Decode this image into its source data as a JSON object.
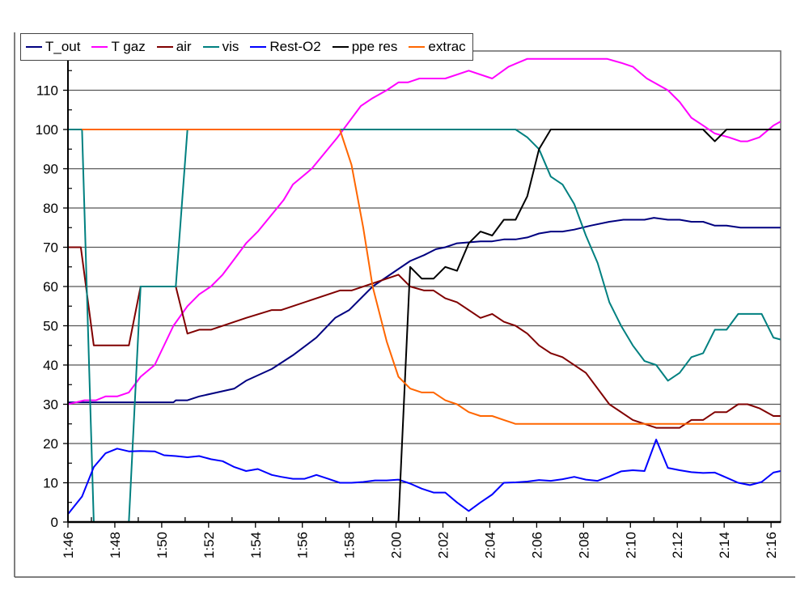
{
  "chart_data": {
    "type": "line",
    "title": "",
    "xlabel": "",
    "ylabel": "",
    "x_unit": "minutes after 1:46",
    "xlim": [
      0,
      30.4
    ],
    "ylim": [
      0,
      120
    ],
    "y_ticks": [
      "0",
      "10",
      "20",
      "30",
      "40",
      "50",
      "60",
      "70",
      "80",
      "90",
      "100",
      "110"
    ],
    "x_ticks": [
      "1:46",
      "1:48",
      "1:50",
      "1:52",
      "1:54",
      "1:56",
      "1:58",
      "2:00",
      "2:02",
      "2:04",
      "2:06",
      "2:08",
      "2:10",
      "2:12",
      "2:14",
      "2:16"
    ],
    "grid": "horizontal",
    "legend_position": "top-left",
    "series": [
      {
        "name": "T_out",
        "color": "#000080",
        "points": [
          [
            0,
            30.5
          ],
          [
            4.5,
            30.5
          ],
          [
            4.6,
            31
          ],
          [
            5.1,
            31
          ],
          [
            5.6,
            32
          ],
          [
            7.1,
            34
          ],
          [
            7.6,
            36
          ],
          [
            8.7,
            39
          ],
          [
            9.6,
            42.5
          ],
          [
            10.6,
            47
          ],
          [
            11.4,
            52
          ],
          [
            12,
            54
          ],
          [
            13,
            60
          ],
          [
            14.6,
            66.5
          ],
          [
            15.2,
            68
          ],
          [
            15.7,
            69.5
          ],
          [
            16.1,
            70
          ],
          [
            16.6,
            71
          ],
          [
            17.6,
            71.5
          ],
          [
            18.1,
            71.5
          ],
          [
            18.6,
            72
          ],
          [
            19.1,
            72
          ],
          [
            19.6,
            72.5
          ],
          [
            20.1,
            73.5
          ],
          [
            20.6,
            74
          ],
          [
            21.1,
            74
          ],
          [
            21.6,
            74.5
          ],
          [
            22.3,
            75.5
          ],
          [
            23.1,
            76.5
          ],
          [
            23.7,
            77
          ],
          [
            24.6,
            77
          ],
          [
            25,
            77.5
          ],
          [
            25.6,
            77
          ],
          [
            26.1,
            77
          ],
          [
            26.6,
            76.5
          ],
          [
            27.1,
            76.5
          ],
          [
            27.6,
            75.5
          ],
          [
            28.1,
            75.5
          ],
          [
            28.7,
            75
          ],
          [
            30.4,
            75
          ]
        ]
      },
      {
        "name": "T gaz",
        "color": "#FF00FF",
        "points": [
          [
            0,
            30
          ],
          [
            0.7,
            31
          ],
          [
            1.2,
            31
          ],
          [
            1.6,
            32
          ],
          [
            2.1,
            32
          ],
          [
            2.6,
            33
          ],
          [
            3.1,
            37
          ],
          [
            3.7,
            40
          ],
          [
            4.5,
            50
          ],
          [
            5.1,
            55
          ],
          [
            5.6,
            58
          ],
          [
            6.1,
            60
          ],
          [
            6.6,
            63
          ],
          [
            7.1,
            67
          ],
          [
            7.6,
            71
          ],
          [
            8.1,
            74
          ],
          [
            9.2,
            82
          ],
          [
            9.6,
            86
          ],
          [
            10.4,
            90
          ],
          [
            11.5,
            98
          ],
          [
            12,
            102
          ],
          [
            12.5,
            106
          ],
          [
            13,
            108
          ],
          [
            13.6,
            110
          ],
          [
            14.1,
            112
          ],
          [
            14.5,
            112
          ],
          [
            15,
            113
          ],
          [
            16.1,
            113
          ],
          [
            17.1,
            115
          ],
          [
            18.1,
            113
          ],
          [
            18.8,
            116
          ],
          [
            19.6,
            118
          ],
          [
            23,
            118
          ],
          [
            23.6,
            117
          ],
          [
            24.1,
            116
          ],
          [
            24.7,
            113
          ],
          [
            25.6,
            110
          ],
          [
            26.1,
            107
          ],
          [
            26.6,
            103
          ],
          [
            27.1,
            101
          ],
          [
            27.6,
            99
          ],
          [
            28.2,
            98
          ],
          [
            28.7,
            97
          ],
          [
            29,
            97
          ],
          [
            29.5,
            98
          ],
          [
            30.1,
            101
          ],
          [
            30.4,
            102
          ]
        ]
      },
      {
        "name": "air",
        "color": "#800000",
        "points": [
          [
            0,
            70
          ],
          [
            0.55,
            70
          ],
          [
            1.1,
            45
          ],
          [
            2.6,
            45
          ],
          [
            3.1,
            60
          ],
          [
            4.6,
            60
          ],
          [
            5.1,
            48
          ],
          [
            5.6,
            49
          ],
          [
            6.1,
            49
          ],
          [
            7.6,
            52
          ],
          [
            8.7,
            54
          ],
          [
            9.1,
            54
          ],
          [
            11.6,
            59
          ],
          [
            12.1,
            59
          ],
          [
            14.1,
            63
          ],
          [
            14.6,
            60
          ],
          [
            15.2,
            59
          ],
          [
            15.6,
            59
          ],
          [
            16.1,
            57
          ],
          [
            16.6,
            56
          ],
          [
            17.6,
            52
          ],
          [
            18.1,
            53
          ],
          [
            18.6,
            51
          ],
          [
            19.1,
            50
          ],
          [
            19.6,
            48
          ],
          [
            20.1,
            45
          ],
          [
            20.6,
            43
          ],
          [
            21.1,
            42
          ],
          [
            22.1,
            38
          ],
          [
            23.1,
            30
          ],
          [
            24.1,
            26
          ],
          [
            25.1,
            24
          ],
          [
            26.1,
            24
          ],
          [
            26.6,
            26
          ],
          [
            27.1,
            26
          ],
          [
            27.6,
            28
          ],
          [
            28.1,
            28
          ],
          [
            28.6,
            30
          ],
          [
            29,
            30
          ],
          [
            29.5,
            29
          ],
          [
            30.1,
            27
          ],
          [
            30.4,
            27
          ]
        ]
      },
      {
        "name": "vis",
        "color": "#008080",
        "points": [
          [
            0,
            100
          ],
          [
            0.6,
            100
          ],
          [
            1.1,
            0
          ],
          [
            2.6,
            0
          ],
          [
            3.1,
            60
          ],
          [
            4.6,
            60
          ],
          [
            5.1,
            100
          ],
          [
            19.1,
            100
          ],
          [
            19.6,
            98
          ],
          [
            20.1,
            95
          ],
          [
            20.6,
            88
          ],
          [
            21.1,
            86
          ],
          [
            21.6,
            81
          ],
          [
            22.1,
            73
          ],
          [
            22.6,
            66
          ],
          [
            23.1,
            56
          ],
          [
            23.6,
            50
          ],
          [
            24.1,
            45
          ],
          [
            24.6,
            41
          ],
          [
            25.1,
            40
          ],
          [
            25.6,
            36
          ],
          [
            26.1,
            38
          ],
          [
            26.6,
            42
          ],
          [
            27.1,
            43
          ],
          [
            27.6,
            49
          ],
          [
            28.1,
            49
          ],
          [
            28.6,
            53
          ],
          [
            29.6,
            53
          ],
          [
            30.1,
            47
          ],
          [
            30.4,
            46.5
          ]
        ]
      },
      {
        "name": "Rest-O2",
        "color": "#0000FF",
        "points": [
          [
            0,
            2
          ],
          [
            0.6,
            6.5
          ],
          [
            1.1,
            14
          ],
          [
            1.6,
            17.5
          ],
          [
            2.1,
            18.7
          ],
          [
            2.6,
            18
          ],
          [
            3.1,
            18.1
          ],
          [
            3.7,
            18
          ],
          [
            4.1,
            17
          ],
          [
            4.6,
            16.8
          ],
          [
            5.1,
            16.5
          ],
          [
            5.6,
            16.8
          ],
          [
            6.1,
            16
          ],
          [
            6.6,
            15.5
          ],
          [
            7.1,
            14
          ],
          [
            7.6,
            13
          ],
          [
            8.1,
            13.5
          ],
          [
            8.7,
            12
          ],
          [
            9.1,
            11.5
          ],
          [
            9.6,
            11
          ],
          [
            10.1,
            11
          ],
          [
            10.6,
            12
          ],
          [
            11.1,
            11
          ],
          [
            11.6,
            10
          ],
          [
            12.1,
            10
          ],
          [
            12.6,
            10.2
          ],
          [
            13.1,
            10.6
          ],
          [
            13.6,
            10.6
          ],
          [
            14.1,
            10.8
          ],
          [
            14.6,
            9.8
          ],
          [
            15.1,
            8.5
          ],
          [
            15.6,
            7.5
          ],
          [
            16.1,
            7.5
          ],
          [
            16.6,
            5
          ],
          [
            17.1,
            2.8
          ],
          [
            17.6,
            5
          ],
          [
            18.1,
            7
          ],
          [
            18.6,
            10
          ],
          [
            19.1,
            10.1
          ],
          [
            19.6,
            10.3
          ],
          [
            20.1,
            10.7
          ],
          [
            20.6,
            10.5
          ],
          [
            21.1,
            10.9
          ],
          [
            21.6,
            11.5
          ],
          [
            22.1,
            10.8
          ],
          [
            22.6,
            10.5
          ],
          [
            23.1,
            11.6
          ],
          [
            23.6,
            12.9
          ],
          [
            24.1,
            13.2
          ],
          [
            24.6,
            13
          ],
          [
            25.1,
            21
          ],
          [
            25.6,
            13.8
          ],
          [
            26.1,
            13.2
          ],
          [
            26.6,
            12.7
          ],
          [
            27.1,
            12.5
          ],
          [
            27.6,
            12.6
          ],
          [
            28.1,
            11.3
          ],
          [
            28.6,
            10
          ],
          [
            29.1,
            9.4
          ],
          [
            29.6,
            10.2
          ],
          [
            30.1,
            12.6
          ],
          [
            30.4,
            13
          ]
        ]
      },
      {
        "name": "ppe res",
        "color": "#000000",
        "points": [
          [
            0,
            0
          ],
          [
            14.1,
            0
          ],
          [
            14.6,
            65
          ],
          [
            15.1,
            62
          ],
          [
            15.6,
            62
          ],
          [
            16.1,
            65
          ],
          [
            16.6,
            64
          ],
          [
            17.1,
            71
          ],
          [
            17.6,
            74
          ],
          [
            18.1,
            73
          ],
          [
            18.6,
            77
          ],
          [
            19.1,
            77
          ],
          [
            19.6,
            83
          ],
          [
            20.1,
            95
          ],
          [
            20.6,
            100
          ],
          [
            27.1,
            100
          ],
          [
            27.6,
            97
          ],
          [
            28.1,
            100
          ],
          [
            30.4,
            100
          ]
        ]
      },
      {
        "name": "extrac",
        "color": "#FF6600",
        "points": [
          [
            0.6,
            100
          ],
          [
            11.6,
            100
          ],
          [
            12.1,
            91
          ],
          [
            12.6,
            75
          ],
          [
            13,
            60
          ],
          [
            13.6,
            46
          ],
          [
            14.1,
            37
          ],
          [
            14.6,
            34
          ],
          [
            15.1,
            33
          ],
          [
            15.6,
            33
          ],
          [
            16.1,
            31
          ],
          [
            16.6,
            30
          ],
          [
            17.1,
            28
          ],
          [
            17.6,
            27
          ],
          [
            18.1,
            27
          ],
          [
            18.6,
            26
          ],
          [
            19.1,
            25
          ],
          [
            30.4,
            25
          ]
        ]
      }
    ]
  }
}
